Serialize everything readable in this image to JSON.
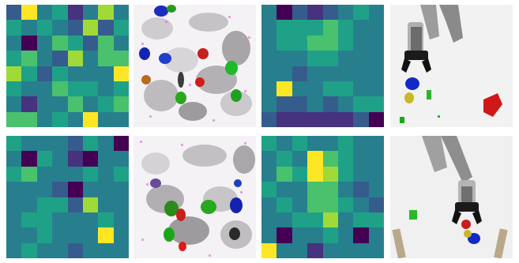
{
  "palette": {
    "v": [
      "#440154",
      "#46327e",
      "#365c8d",
      "#277f8e",
      "#1fa187",
      "#4ac16d",
      "#a0da39",
      "#fde725"
    ]
  },
  "panels": [
    {
      "kind": "heatmap",
      "grid": [
        [
          2,
          7,
          3,
          4,
          1,
          3,
          6,
          3
        ],
        [
          4,
          3,
          4,
          3,
          2,
          6,
          2,
          4
        ],
        [
          3,
          0,
          3,
          5,
          4,
          2,
          5,
          3
        ],
        [
          4,
          5,
          3,
          2,
          6,
          3,
          5,
          5
        ],
        [
          6,
          4,
          2,
          4,
          3,
          3,
          3,
          7
        ],
        [
          4,
          3,
          3,
          5,
          4,
          4,
          3,
          4
        ],
        [
          3,
          1,
          3,
          3,
          5,
          3,
          4,
          5
        ],
        [
          5,
          5,
          3,
          4,
          3,
          7,
          3,
          3
        ]
      ]
    },
    {
      "kind": "reconstruction",
      "variant": 1
    },
    {
      "kind": "heatmap",
      "grid": [
        [
          3,
          0,
          2,
          1,
          2,
          3,
          4,
          3
        ],
        [
          3,
          4,
          4,
          4,
          5,
          4,
          3,
          3
        ],
        [
          3,
          4,
          4,
          5,
          5,
          4,
          3,
          3
        ],
        [
          3,
          3,
          3,
          4,
          4,
          3,
          3,
          3
        ],
        [
          3,
          3,
          2,
          3,
          3,
          3,
          3,
          3
        ],
        [
          3,
          7,
          3,
          3,
          4,
          4,
          3,
          3
        ],
        [
          3,
          2,
          2,
          3,
          2,
          3,
          4,
          4
        ],
        [
          2,
          1,
          1,
          1,
          1,
          1,
          2,
          0
        ]
      ]
    },
    {
      "kind": "robot",
      "variant": 1
    },
    {
      "kind": "heatmap",
      "grid": [
        [
          4,
          3,
          3,
          3,
          2,
          4,
          3,
          0
        ],
        [
          3,
          0,
          4,
          3,
          1,
          0,
          3,
          3
        ],
        [
          4,
          5,
          3,
          3,
          3,
          4,
          3,
          4
        ],
        [
          3,
          3,
          3,
          2,
          0,
          3,
          3,
          3
        ],
        [
          3,
          3,
          4,
          4,
          2,
          6,
          3,
          3
        ],
        [
          3,
          4,
          4,
          3,
          3,
          3,
          4,
          3
        ],
        [
          3,
          3,
          4,
          3,
          3,
          3,
          7,
          3
        ],
        [
          3,
          4,
          3,
          3,
          2,
          3,
          3,
          3
        ]
      ]
    },
    {
      "kind": "reconstruction",
      "variant": 2
    },
    {
      "kind": "heatmap",
      "grid": [
        [
          4,
          3,
          4,
          3,
          3,
          4,
          3,
          3
        ],
        [
          3,
          4,
          3,
          7,
          5,
          4,
          3,
          3
        ],
        [
          3,
          5,
          4,
          7,
          6,
          4,
          3,
          3
        ],
        [
          4,
          3,
          3,
          5,
          5,
          3,
          2,
          3
        ],
        [
          3,
          4,
          3,
          5,
          5,
          4,
          3,
          2
        ],
        [
          3,
          3,
          4,
          4,
          6,
          3,
          4,
          4
        ],
        [
          3,
          0,
          3,
          3,
          4,
          3,
          0,
          3
        ],
        [
          7,
          3,
          3,
          1,
          3,
          3,
          3,
          3
        ]
      ]
    },
    {
      "kind": "robot",
      "variant": 2
    }
  ]
}
